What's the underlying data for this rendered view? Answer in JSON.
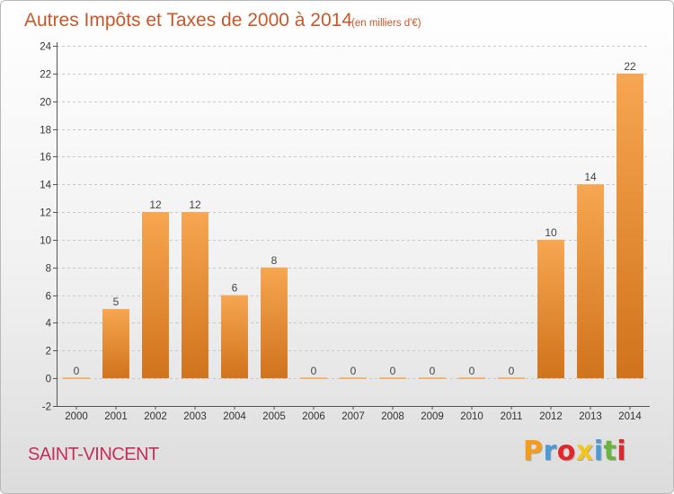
{
  "chart_data": {
    "type": "bar",
    "title": "Autres Impôts et Taxes de 2000 à 2014",
    "subtitle": "(en milliers d'€)",
    "categories": [
      "2000",
      "2001",
      "2002",
      "2003",
      "2004",
      "2005",
      "2006",
      "2007",
      "2008",
      "2009",
      "2010",
      "2011",
      "2012",
      "2013",
      "2014"
    ],
    "values": [
      0,
      5,
      12,
      12,
      6,
      8,
      0,
      0,
      0,
      0,
      0,
      0,
      10,
      14,
      22
    ],
    "ylim": [
      -2,
      24
    ],
    "yticks": [
      -2,
      0,
      2,
      4,
      6,
      8,
      10,
      12,
      14,
      16,
      18,
      20,
      22,
      24
    ],
    "grid": true,
    "bar_color_top": "#f7a651",
    "bar_color_bottom": "#d0731c"
  },
  "footer": {
    "commune": "SAINT-VINCENT",
    "brand_letters": [
      "P",
      "r",
      "o",
      "x",
      "i",
      "t",
      "i"
    ],
    "brand_colors": [
      "#f59c1a",
      "#4a9ad8",
      "#e2262a",
      "#f5c518",
      "#4a9ad8",
      "#6ab33e",
      "#e2262a"
    ]
  }
}
